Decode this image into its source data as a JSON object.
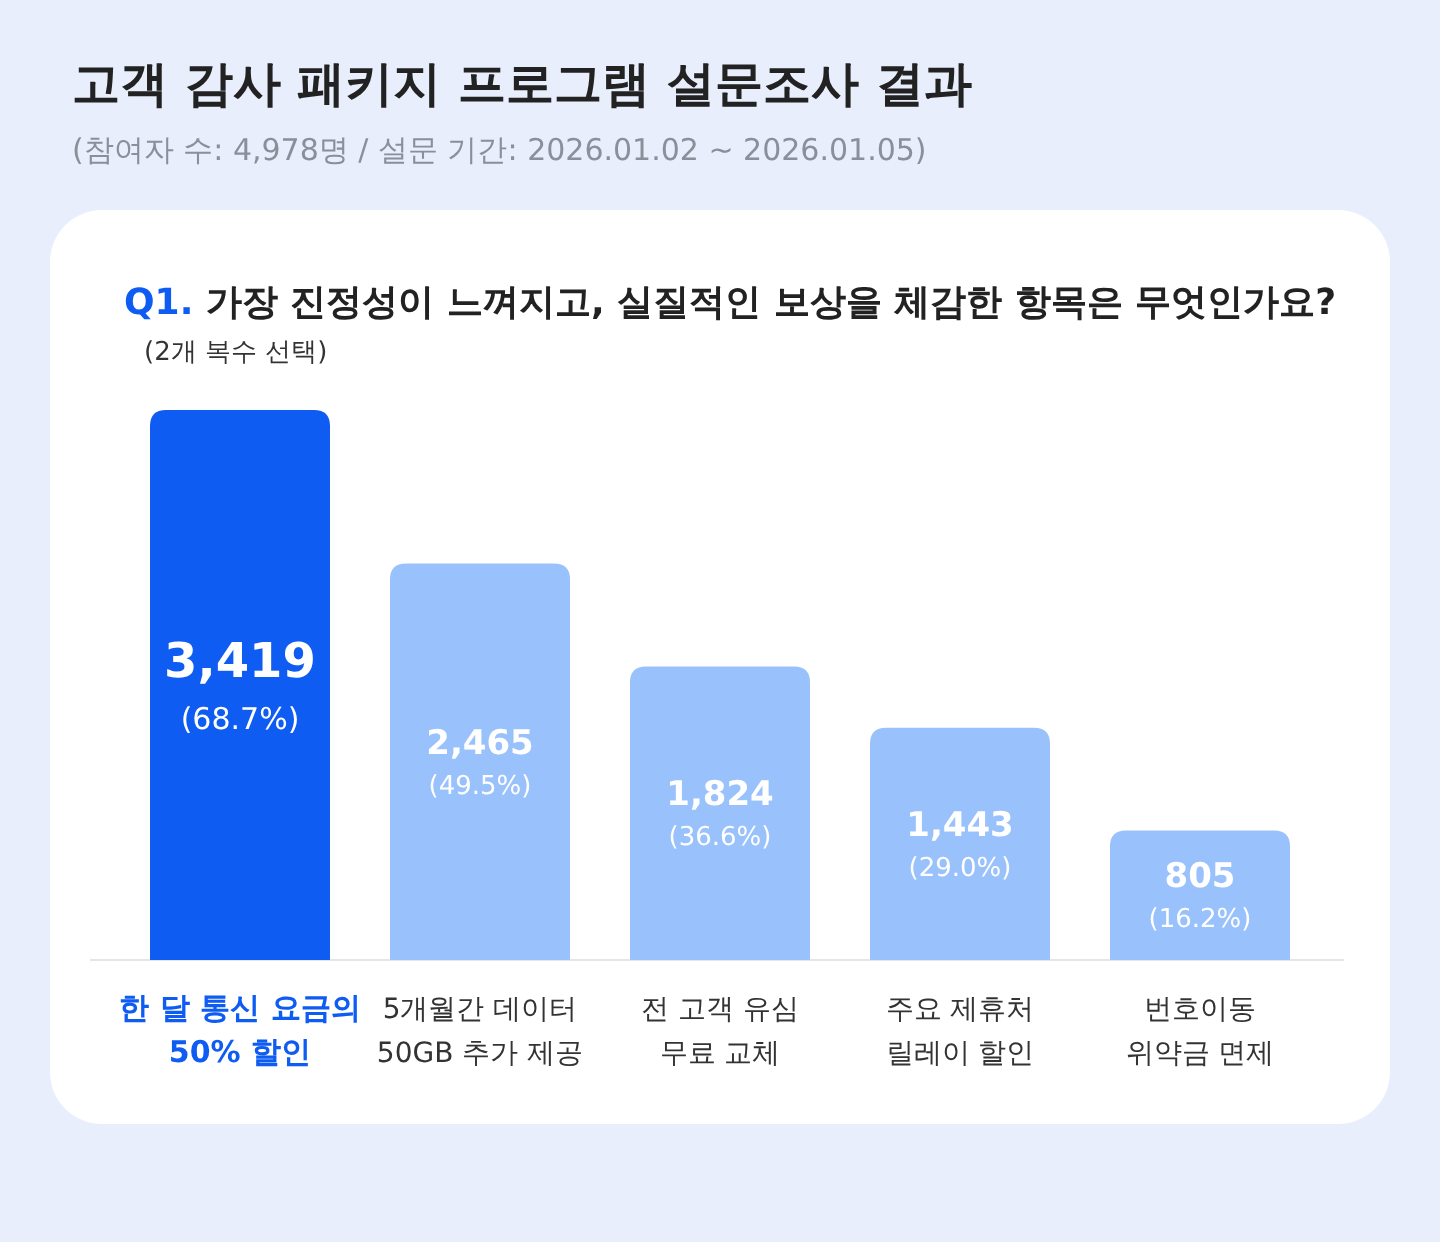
{
  "chart_data": {
    "type": "bar",
    "title": "고객 감사 패키지 프로그램 설문조사 결과",
    "subtitle": "(참여자 수: 4,978명 / 설문 기간: 2026.01.02 ~ 2026.01.05)",
    "annotations": [
      "Q1. 가장 진정성이 느껴지고, 실질적인 보상을 체감한 항목은 무엇인가요?",
      "(2개 복수 선택)"
    ],
    "categories": [
      "한 달 통신 요금의\n50% 할인",
      "5개월간 데이터\n50GB 추가 제공",
      "전 고객 유심\n무료 교체",
      "주요 제휴처\n릴레이 할인",
      "번호이동\n위약금 면제"
    ],
    "values": [
      3419,
      2465,
      1824,
      1443,
      805
    ],
    "value_labels": [
      "3,419\n(68.7%)",
      "2,465\n(49.5%)",
      "1,824\n(36.6%)",
      "1,443\n(29.0%)",
      "805\n(16.2%)"
    ],
    "colors": [
      "#0f5cf2",
      "#99c1fb",
      "#99c1fb",
      "#99c1fb",
      "#99c1fb"
    ]
  }
}
